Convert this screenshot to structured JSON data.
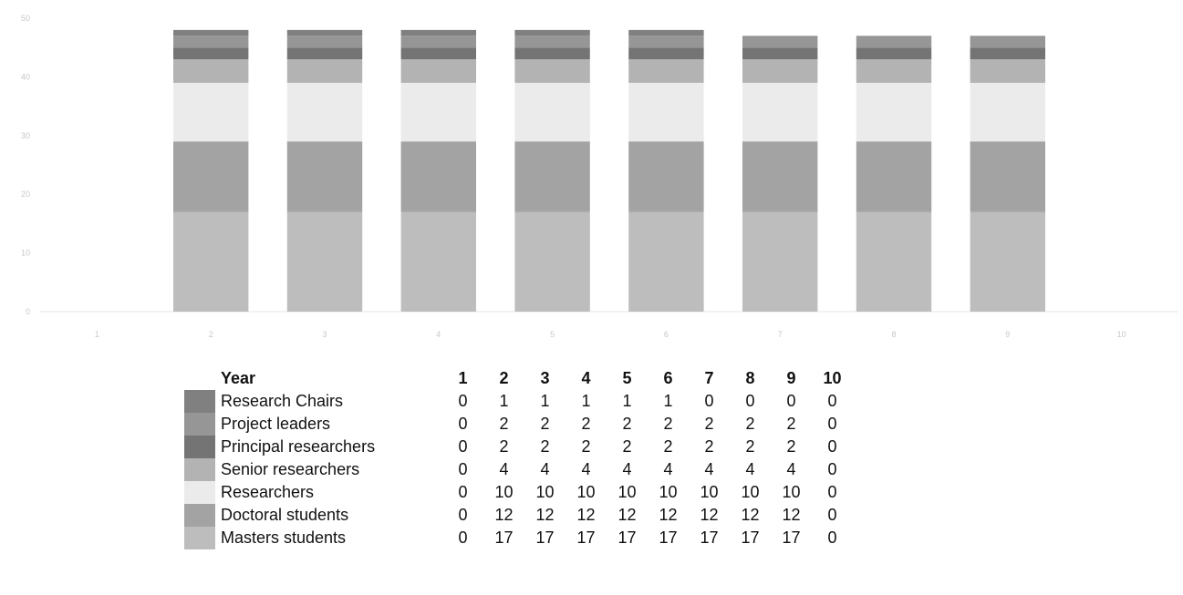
{
  "chart_data": {
    "type": "bar",
    "stacked": true,
    "categories": [
      "1",
      "2",
      "3",
      "4",
      "5",
      "6",
      "7",
      "8",
      "9",
      "10"
    ],
    "ylim": [
      0,
      50
    ],
    "grid": false,
    "legend": "table-below",
    "y_ticks": [
      "0",
      "10",
      "20",
      "30",
      "40",
      "50"
    ],
    "series": [
      {
        "name": "Masters students",
        "color": "#bdbdbd",
        "values": [
          0,
          17,
          17,
          17,
          17,
          17,
          17,
          17,
          17,
          0
        ]
      },
      {
        "name": "Doctoral students",
        "color": "#a3a3a3",
        "values": [
          0,
          12,
          12,
          12,
          12,
          12,
          12,
          12,
          12,
          0
        ]
      },
      {
        "name": "Researchers",
        "color": "#ebebeb",
        "values": [
          0,
          10,
          10,
          10,
          10,
          10,
          10,
          10,
          10,
          0
        ]
      },
      {
        "name": "Senior researchers",
        "color": "#b3b3b3",
        "values": [
          0,
          4,
          4,
          4,
          4,
          4,
          4,
          4,
          4,
          0
        ]
      },
      {
        "name": "Principal researchers",
        "color": "#747474",
        "values": [
          0,
          2,
          2,
          2,
          2,
          2,
          2,
          2,
          2,
          0
        ]
      },
      {
        "name": "Project leaders",
        "color": "#969696",
        "values": [
          0,
          2,
          2,
          2,
          2,
          2,
          2,
          2,
          2,
          0
        ]
      },
      {
        "name": "Research Chairs",
        "color": "#808080",
        "values": [
          0,
          1,
          1,
          1,
          1,
          1,
          0,
          0,
          0,
          0
        ]
      }
    ]
  },
  "table": {
    "header_label": "Year",
    "row_order": [
      6,
      5,
      4,
      3,
      2,
      1,
      0
    ]
  }
}
